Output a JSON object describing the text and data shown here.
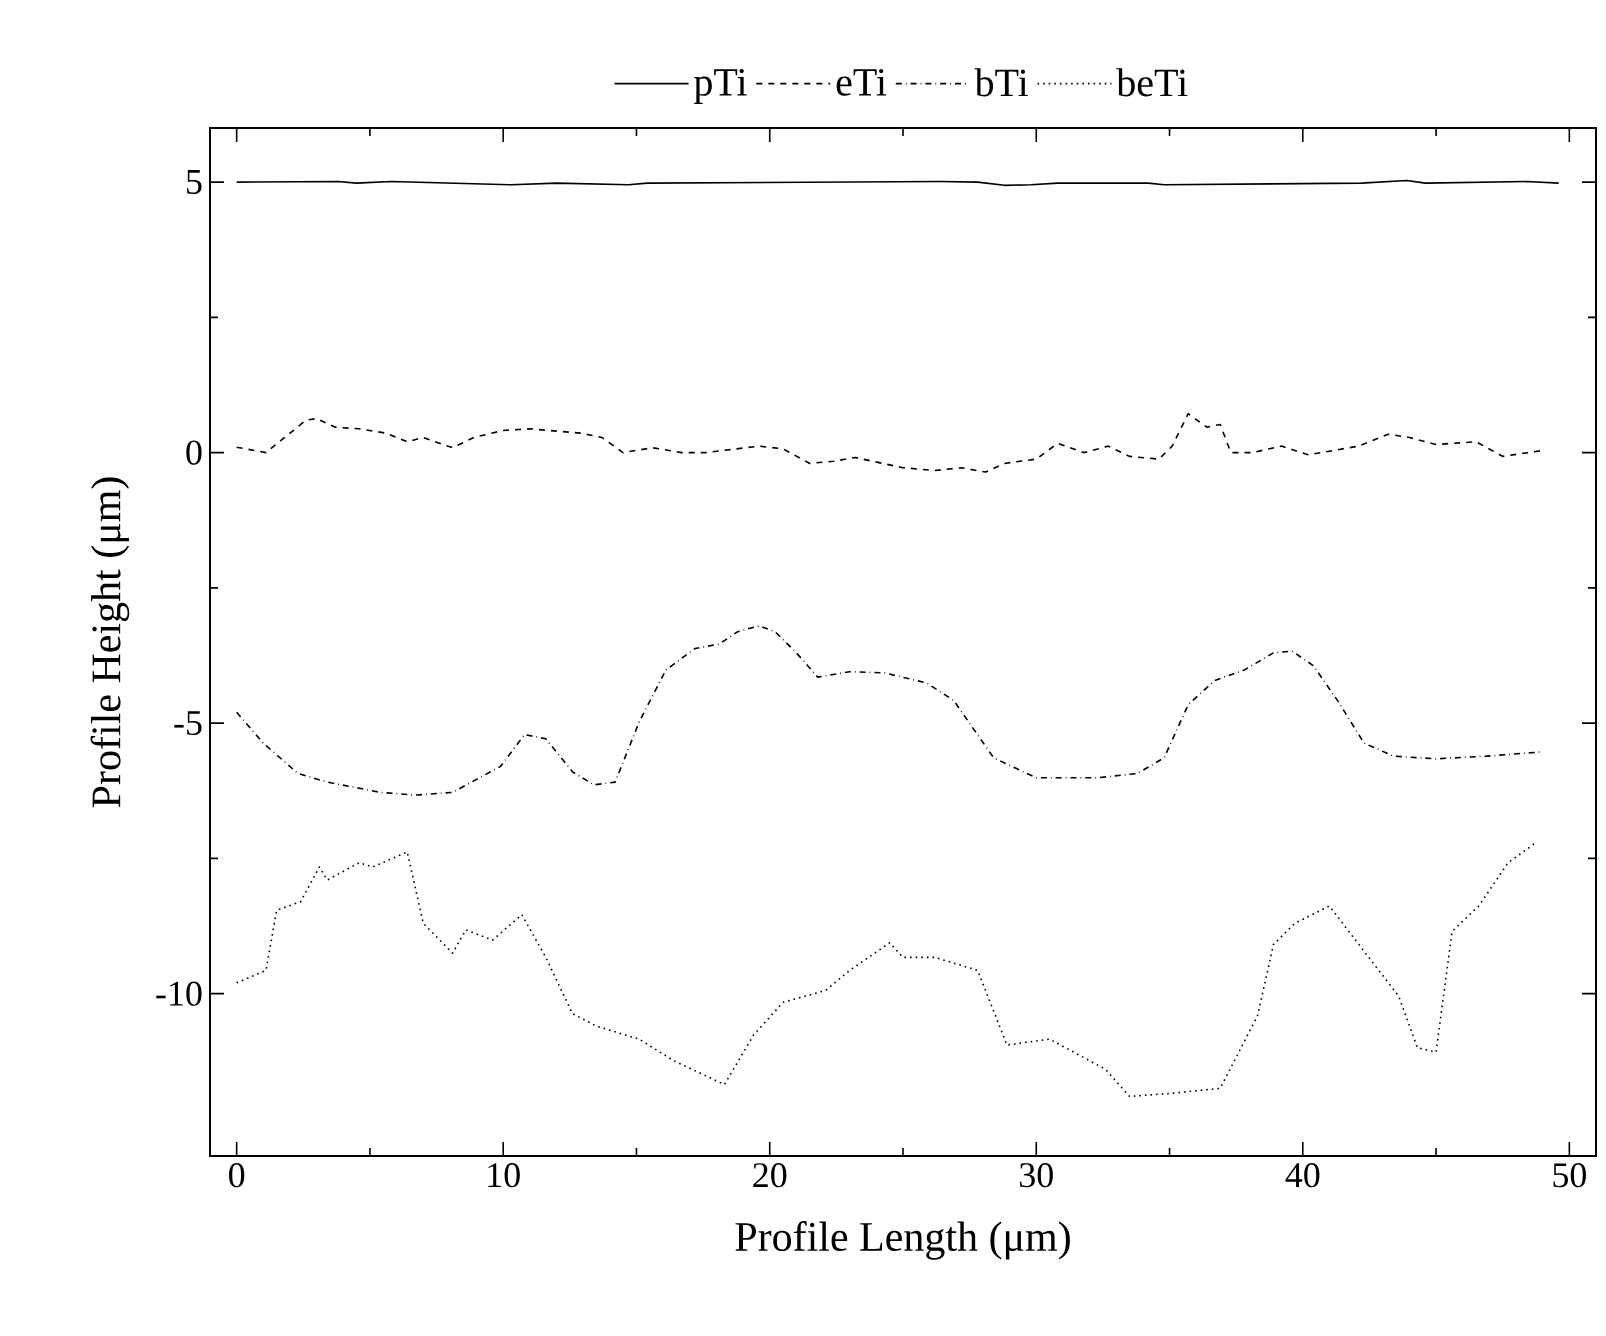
{
  "chart_data": {
    "type": "line",
    "xlabel": "Profile Length (μm)",
    "ylabel": "Profile Height (μm)",
    "xlim": [
      -1,
      51
    ],
    "ylim": [
      -13,
      6
    ],
    "xticks": [
      0,
      10,
      20,
      30,
      40,
      50
    ],
    "yticks": [
      -10,
      -5,
      0,
      5
    ],
    "legend": "top",
    "grid": false,
    "marker": "none",
    "series": [
      {
        "name": "pTi",
        "color": "#000000",
        "line_style": "solid",
        "x": [
          0,
          3.8,
          4.5,
          5.8,
          10.3,
          12,
          14.7,
          15.4,
          26.4,
          27.8,
          28.8,
          29.8,
          30.8,
          34.2,
          34.8,
          42.2,
          43.9,
          44.6,
          48.4,
          49.6
        ],
        "values": [
          5.0,
          5.01,
          4.98,
          5.01,
          4.95,
          4.98,
          4.95,
          4.98,
          5.01,
          5.0,
          4.94,
          4.95,
          4.98,
          4.98,
          4.95,
          4.98,
          5.03,
          4.98,
          5.01,
          4.98
        ]
      },
      {
        "name": "eTi",
        "color": "#000000",
        "line_style": "dashed",
        "x": [
          0,
          1.1,
          1.8,
          2.6,
          3.0,
          3.7,
          4.6,
          5.6,
          6.4,
          7.0,
          8.1,
          8.9,
          10.0,
          11.0,
          12.9,
          13.7,
          14.5,
          15.6,
          16.7,
          17.6,
          19.6,
          20.5,
          21.5,
          22.4,
          23.2,
          25.0,
          26.2,
          27.2,
          28.1,
          28.8,
          30.0,
          30.8,
          31.8,
          32.7,
          33.5,
          34.6,
          35.1,
          35.7,
          36.4,
          36.9,
          37.3,
          38.1,
          39.2,
          40.2,
          42.1,
          43.2,
          44.0,
          45.0,
          46.5,
          47.5,
          49.0
        ],
        "values": [
          0.1,
          0.0,
          0.28,
          0.6,
          0.63,
          0.47,
          0.44,
          0.36,
          0.2,
          0.28,
          0.09,
          0.28,
          0.41,
          0.44,
          0.36,
          0.28,
          0.0,
          0.09,
          0.0,
          0.0,
          0.12,
          0.07,
          -0.2,
          -0.16,
          -0.09,
          -0.28,
          -0.33,
          -0.28,
          -0.36,
          -0.2,
          -0.12,
          0.17,
          0.0,
          0.12,
          -0.07,
          -0.12,
          0.12,
          0.72,
          0.47,
          0.52,
          0.0,
          0.0,
          0.12,
          -0.04,
          0.12,
          0.34,
          0.28,
          0.15,
          0.2,
          -0.07,
          0.04
        ]
      },
      {
        "name": "bTi",
        "color": "#000000",
        "line_style": "dashdot",
        "x": [
          0,
          1.0,
          2.3,
          3.4,
          5.4,
          6.7,
          8.1,
          9.9,
          10.8,
          11.6,
          12.6,
          13.4,
          14.2,
          15.1,
          16.1,
          17.2,
          18.1,
          18.8,
          19.6,
          20.2,
          21.0,
          21.8,
          23.0,
          24.3,
          25.9,
          26.9,
          28.4,
          30.0,
          32.3,
          33.8,
          34.8,
          35.7,
          36.7,
          37.8,
          38.9,
          39.6,
          40.4,
          41.3,
          42.3,
          43.4,
          45.0,
          46.9,
          49.0
        ],
        "values": [
          -4.8,
          -5.37,
          -5.93,
          -6.09,
          -6.28,
          -6.33,
          -6.28,
          -5.8,
          -5.21,
          -5.29,
          -5.9,
          -6.14,
          -6.09,
          -4.98,
          -4.02,
          -3.62,
          -3.54,
          -3.31,
          -3.2,
          -3.31,
          -3.7,
          -4.15,
          -4.05,
          -4.07,
          -4.26,
          -4.58,
          -5.64,
          -6.01,
          -6.01,
          -5.93,
          -5.64,
          -4.66,
          -4.21,
          -4.02,
          -3.7,
          -3.67,
          -3.94,
          -4.58,
          -5.37,
          -5.61,
          -5.66,
          -5.61,
          -5.53
        ]
      },
      {
        "name": "beTi",
        "color": "#000000",
        "line_style": "dotted",
        "x": [
          0,
          1.1,
          1.5,
          2.4,
          3.1,
          3.4,
          4.6,
          5.1,
          6.4,
          7.0,
          8.1,
          8.6,
          9.6,
          10.7,
          11.6,
          12.6,
          13.5,
          15.1,
          16.4,
          18.3,
          19.4,
          20.5,
          22.1,
          23.0,
          24.5,
          25.0,
          26.2,
          27.8,
          28.9,
          30.5,
          32.6,
          33.5,
          35.1,
          36.9,
          38.3,
          38.9,
          39.7,
          41.0,
          42.1,
          43.6,
          44.3,
          45.0,
          45.6,
          46.6,
          47.7,
          48.8
        ],
        "values": [
          -9.8,
          -9.57,
          -8.46,
          -8.3,
          -7.66,
          -7.9,
          -7.58,
          -7.66,
          -7.38,
          -8.7,
          -9.25,
          -8.82,
          -9.01,
          -8.54,
          -9.33,
          -10.37,
          -10.6,
          -10.84,
          -11.24,
          -11.68,
          -10.76,
          -10.16,
          -9.94,
          -9.57,
          -9.06,
          -9.33,
          -9.33,
          -9.57,
          -10.95,
          -10.84,
          -11.4,
          -11.9,
          -11.84,
          -11.75,
          -10.41,
          -9.09,
          -8.7,
          -8.38,
          -9.09,
          -10.05,
          -11.0,
          -11.08,
          -8.85,
          -8.38,
          -7.58,
          -7.19
        ]
      }
    ]
  }
}
